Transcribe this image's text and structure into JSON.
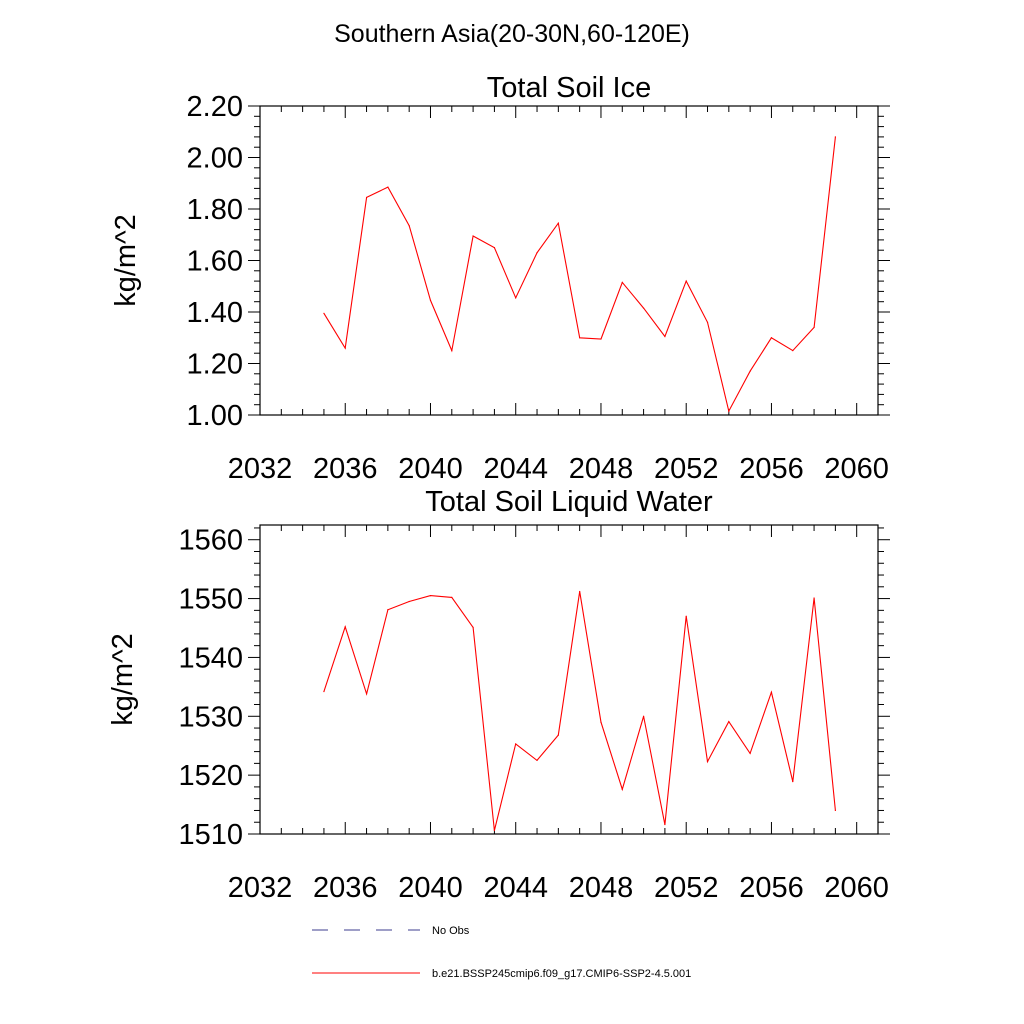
{
  "figure_title": "Southern Asia(20-30N,60-120E)",
  "colors": {
    "model": "#ff0000",
    "obs": "#3d3d8f",
    "axis": "#000000"
  },
  "legend": [
    {
      "label": "No Obs",
      "style": "dashed",
      "color": "#3d3d8f"
    },
    {
      "label": "b.e21.BSSP245cmip6.f09_g17.CMIP6-SSP2-4.5.001",
      "style": "solid",
      "color": "#ff0000"
    }
  ],
  "chart_data": [
    {
      "type": "line",
      "title": "Total Soil Ice",
      "xlabel": "",
      "ylabel": "kg/m^2",
      "xlim": [
        2032,
        2061
      ],
      "ylim": [
        1.0,
        2.2
      ],
      "xticks": [
        2032,
        2036,
        2040,
        2044,
        2048,
        2052,
        2056,
        2060
      ],
      "yticks": [
        1.0,
        1.2,
        1.4,
        1.6,
        1.8,
        2.0,
        2.2
      ],
      "ytick_decimals": 2,
      "grid": false,
      "x": [
        2035,
        2036,
        2037,
        2038,
        2039,
        2040,
        2041,
        2042,
        2043,
        2044,
        2045,
        2046,
        2047,
        2048,
        2049,
        2050,
        2051,
        2052,
        2053,
        2054,
        2055,
        2056,
        2057,
        2058,
        2059
      ],
      "series": [
        {
          "name": "b.e21.BSSP245cmip6.f09_g17.CMIP6-SSP2-4.5.001",
          "color": "#ff0000",
          "values": [
            1.395,
            1.26,
            1.845,
            1.885,
            1.735,
            1.445,
            1.25,
            1.695,
            1.65,
            1.455,
            1.63,
            1.745,
            1.3,
            1.295,
            1.515,
            1.415,
            1.305,
            1.52,
            1.36,
            1.015,
            1.17,
            1.3,
            1.25,
            1.34,
            2.08
          ]
        }
      ]
    },
    {
      "type": "line",
      "title": "Total Soil Liquid Water",
      "xlabel": "",
      "ylabel": "kg/m^2",
      "xlim": [
        2032,
        2061
      ],
      "ylim": [
        1510,
        1562.5
      ],
      "xticks": [
        2032,
        2036,
        2040,
        2044,
        2048,
        2052,
        2056,
        2060
      ],
      "yticks": [
        1510,
        1520,
        1530,
        1540,
        1550,
        1560
      ],
      "ytick_decimals": 0,
      "grid": false,
      "x": [
        2035,
        2036,
        2037,
        2038,
        2039,
        2040,
        2041,
        2042,
        2043,
        2044,
        2045,
        2046,
        2047,
        2048,
        2049,
        2050,
        2051,
        2052,
        2053,
        2054,
        2055,
        2056,
        2057,
        2058,
        2059
      ],
      "series": [
        {
          "name": "b.e21.BSSP245cmip6.f09_g17.CMIP6-SSP2-4.5.001",
          "color": "#ff0000",
          "values": [
            1534.2,
            1545.2,
            1533.8,
            1548.1,
            1549.5,
            1550.5,
            1550.2,
            1545.1,
            1510.6,
            1525.3,
            1522.5,
            1526.8,
            1551.2,
            1529.0,
            1517.6,
            1530.0,
            1511.6,
            1547.0,
            1522.3,
            1529.1,
            1523.7,
            1534.1,
            1518.9,
            1550.1,
            1514.0
          ]
        }
      ]
    }
  ]
}
